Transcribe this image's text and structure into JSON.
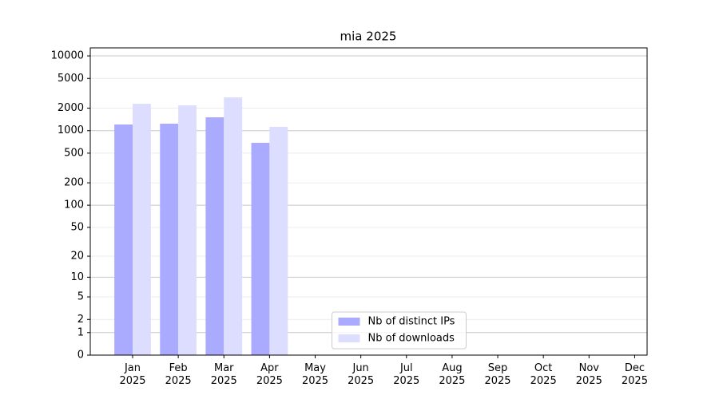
{
  "chart_data": {
    "type": "bar",
    "title": "mia 2025",
    "categories": [
      "Jan\n2025",
      "Feb\n2025",
      "Mar\n2025",
      "Apr\n2025",
      "May\n2025",
      "Jun\n2025",
      "Jul\n2025",
      "Aug\n2025",
      "Sep\n2025",
      "Oct\n2025",
      "Nov\n2025",
      "Dec\n2025"
    ],
    "series": [
      {
        "name": "Nb of distinct IPs",
        "color": "#aaaaff",
        "values": [
          1210,
          1240,
          1510,
          688,
          null,
          null,
          null,
          null,
          null,
          null,
          null,
          null
        ]
      },
      {
        "name": "Nb of downloads",
        "color": "#ddddff",
        "values": [
          2290,
          2180,
          2790,
          1125,
          null,
          null,
          null,
          null,
          null,
          null,
          null,
          null
        ]
      }
    ],
    "yscale": "log1p",
    "ylim": [
      0,
      12800
    ],
    "yticks": [
      0,
      1,
      2,
      5,
      10,
      20,
      50,
      100,
      200,
      500,
      1000,
      2000,
      5000,
      10000
    ],
    "grid": true,
    "legend": "lower center"
  }
}
